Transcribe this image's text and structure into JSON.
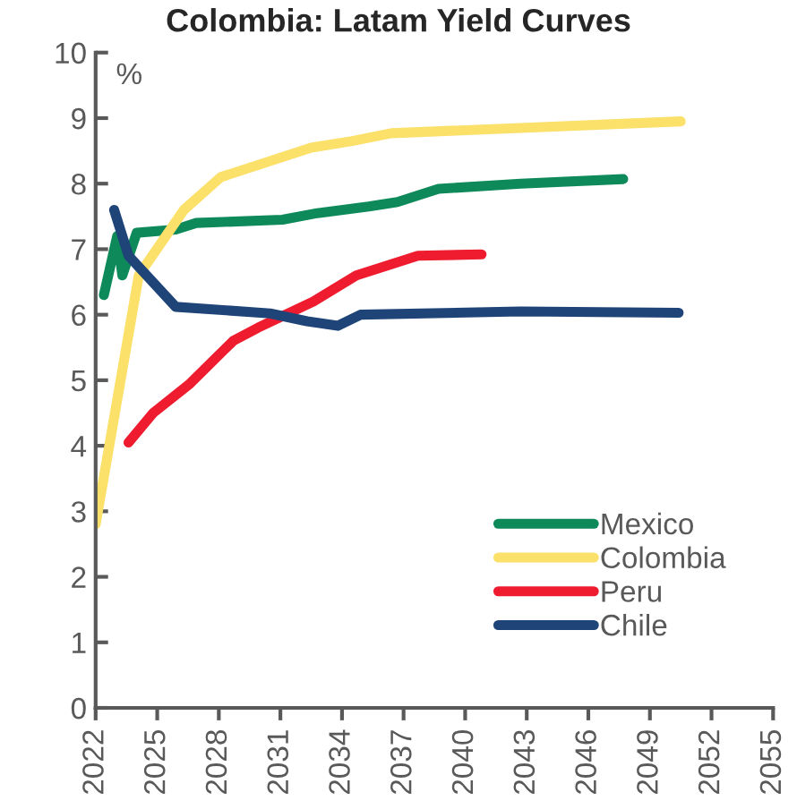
{
  "chart_data": {
    "type": "line",
    "title": "Colombia: Latam Yield Curves",
    "annotations": [
      "%"
    ],
    "xlim": [
      2022,
      2055
    ],
    "xticks": [
      2022,
      2025,
      2028,
      2031,
      2034,
      2037,
      2040,
      2043,
      2046,
      2049,
      2052,
      2055
    ],
    "ylim": [
      0,
      10
    ],
    "yticks": [
      0,
      1,
      2,
      3,
      4,
      5,
      6,
      7,
      8,
      9,
      10
    ],
    "grid": false,
    "legend": "bottom right",
    "marker": "none",
    "line_style": "solid",
    "series": [
      {
        "name": "Mexico",
        "color": "#0e8a5a",
        "x": [
          2022.4,
          2023.05,
          2023.3,
          2024.0,
          2025.9,
          2026.9,
          2031.1,
          2032.8,
          2035.3,
          2036.7,
          2038.7,
          2042.7,
          2047.7
        ],
        "values": [
          6.3,
          7.2,
          6.6,
          7.25,
          7.3,
          7.4,
          7.45,
          7.55,
          7.65,
          7.72,
          7.92,
          8.0,
          8.07
        ]
      },
      {
        "name": "Colombia",
        "color": "#fbe06a",
        "x": [
          2022.0,
          2024.1,
          2026.3,
          2028.1,
          2032.5,
          2034.5,
          2036.4,
          2042.7,
          2050.5
        ],
        "values": [
          2.8,
          6.6,
          7.6,
          8.1,
          8.55,
          8.65,
          8.77,
          8.85,
          8.95
        ]
      },
      {
        "name": "Peru",
        "color": "#ee1c2e",
        "x": [
          2023.6,
          2024.8,
          2026.6,
          2028.7,
          2029.9,
          2032.6,
          2034.7,
          2037.7,
          2040.8
        ],
        "values": [
          4.05,
          4.5,
          4.95,
          5.6,
          5.8,
          6.2,
          6.6,
          6.9,
          6.92
        ]
      },
      {
        "name": "Chile",
        "color": "#1f4478",
        "x": [
          2022.9,
          2023.6,
          2025.9,
          2030.5,
          2032.3,
          2033.8,
          2034.9,
          2042.7,
          2050.4
        ],
        "values": [
          7.6,
          6.9,
          6.12,
          6.02,
          5.9,
          5.83,
          6.0,
          6.05,
          6.03
        ]
      }
    ]
  }
}
